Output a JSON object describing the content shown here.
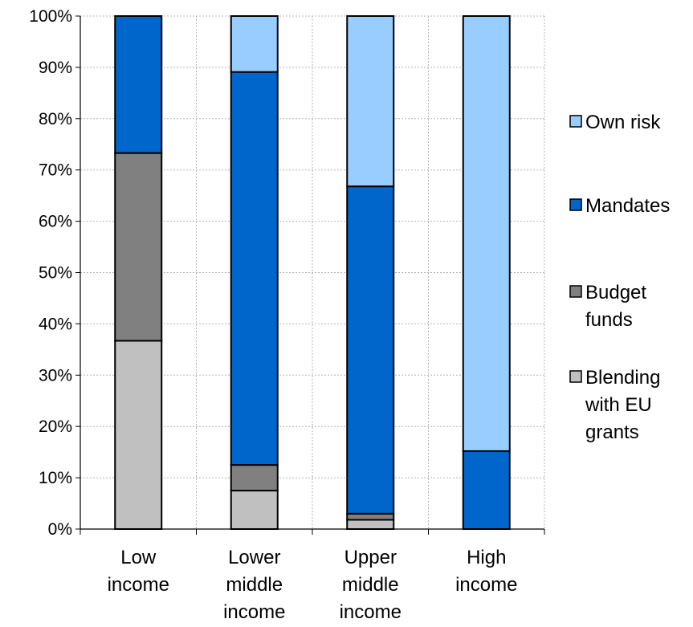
{
  "chart_data": {
    "type": "bar",
    "stacked": true,
    "title": "",
    "xlabel": "",
    "ylabel": "",
    "ylim": [
      0,
      100
    ],
    "y_unit": "%",
    "grid": true,
    "legend_position": "right",
    "categories": [
      [
        "Low",
        "income"
      ],
      [
        "Lower",
        "middle",
        "income"
      ],
      [
        "Upper",
        "middle",
        "income"
      ],
      [
        "High",
        "income"
      ]
    ],
    "y_ticks": [
      "0%",
      "10%",
      "20%",
      "30%",
      "40%",
      "50%",
      "60%",
      "70%",
      "80%",
      "90%",
      "100%"
    ],
    "series": [
      {
        "name": [
          "Blending",
          "with EU",
          "grants"
        ],
        "color": "#c0c0c0",
        "values": [
          36.7,
          7.5,
          1.8,
          0.0
        ]
      },
      {
        "name": [
          "Budget",
          "funds"
        ],
        "color": "#808080",
        "values": [
          36.6,
          5.0,
          1.2,
          0.0
        ]
      },
      {
        "name": [
          "Mandates"
        ],
        "color": "#0066cc",
        "values": [
          26.7,
          76.6,
          63.8,
          15.2
        ]
      },
      {
        "name": [
          "Own risk"
        ],
        "color": "#99ccff",
        "values": [
          0.0,
          10.9,
          33.2,
          84.8
        ]
      }
    ]
  }
}
